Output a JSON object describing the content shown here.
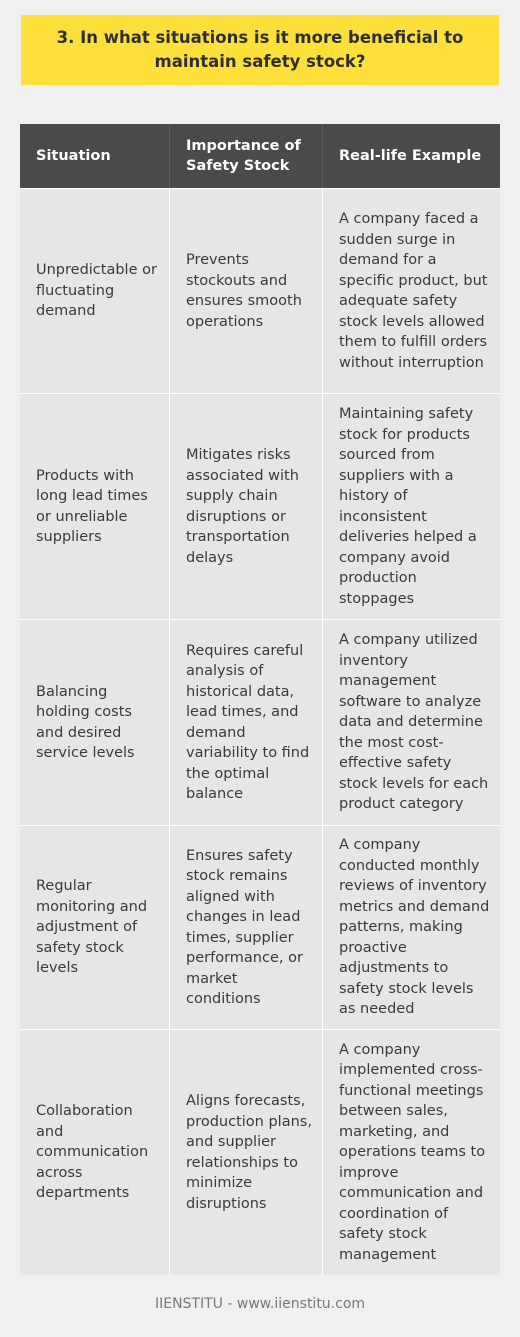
{
  "title": "3. In what situations is it more beneficial to maintain safety stock?",
  "table": {
    "headers": [
      "Situation",
      "Importance of Safety Stock",
      "Real-life Example"
    ],
    "rows": [
      {
        "situation": "Unpredictable or fluctuating demand",
        "importance": "Prevents stockouts and ensures smooth operations",
        "example": "A company faced a sudden surge in demand for a specific product, but adequate safety stock levels allowed them to fulfill orders without interruption"
      },
      {
        "situation": "Products with long lead times or unreliable suppliers",
        "importance": "Mitigates risks associated with supply chain disruptions or transportation delays",
        "example": "Maintaining safety stock for products sourced from suppliers with a history of inconsistent deliveries helped a company avoid production stoppages"
      },
      {
        "situation": "Balancing holding costs and desired service levels",
        "importance": "Requires careful analysis of historical data, lead times, and demand variability to find the optimal balance",
        "example": "A company utilized inventory management software to analyze data and determine the most cost-effective safety stock levels for each product category"
      },
      {
        "situation": "Regular monitoring and adjustment of safety stock levels",
        "importance": "Ensures safety stock remains aligned with changes in lead times, supplier performance, or market conditions",
        "example": "A company conducted monthly reviews of inventory metrics and demand patterns, making proactive adjustments to safety stock levels as needed"
      },
      {
        "situation": "Collaboration and communication across departments",
        "importance": "Aligns forecasts, production plans, and supplier relationships to minimize disruptions",
        "example": "A company implemented cross-functional meetings between sales, marketing, and operations teams to improve communication and coordination of safety stock management"
      }
    ]
  },
  "footer": "IIENSTITU - www.iienstitu.com",
  "colors": {
    "title_bg": "#ffe03a",
    "header_bg": "#4a4a4a",
    "row_bg": "#e6e6e6",
    "page_bg": "#f0f0f0"
  }
}
